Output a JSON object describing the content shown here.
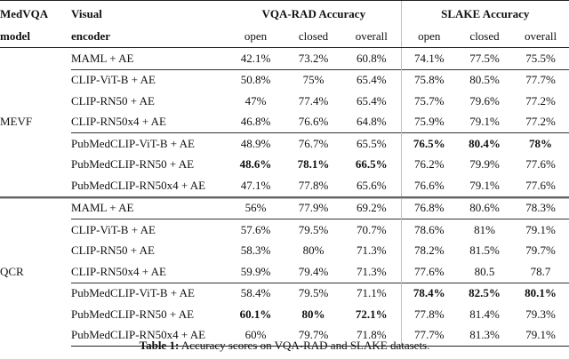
{
  "header": {
    "model_line1": "MedVQA",
    "model_line2": "model",
    "encoder_line1": "Visual",
    "encoder_line2": "encoder",
    "vqarad_title": "VQA-RAD Accuracy",
    "slake_title": "SLAKE Accuracy",
    "sub": [
      "open",
      "closed",
      "overall",
      "open",
      "closed",
      "overall"
    ]
  },
  "groups": [
    {
      "model": "MEVF",
      "rows": [
        {
          "encoder": "MAML + AE",
          "vals": [
            "42.1%",
            "73.2%",
            "60.8%",
            "74.1%",
            "77.5%",
            "75.5%"
          ],
          "bold": [
            false,
            false,
            false,
            false,
            false,
            false
          ]
        },
        {
          "encoder": "CLIP-ViT-B + AE",
          "vals": [
            "50.8%",
            "75%",
            "65.4%",
            "75.8%",
            "80.5%",
            "77.7%"
          ],
          "bold": [
            false,
            false,
            false,
            false,
            false,
            false
          ]
        },
        {
          "encoder": "CLIP-RN50 + AE",
          "vals": [
            "47%",
            "77.4%",
            "65.4%",
            "75.7%",
            "79.6%",
            "77.2%"
          ],
          "bold": [
            false,
            false,
            false,
            false,
            false,
            false
          ]
        },
        {
          "encoder": "CLIP-RN50x4 + AE",
          "vals": [
            "46.8%",
            "76.6%",
            "64.8%",
            "75.9%",
            "79.1%",
            "77.2%"
          ],
          "bold": [
            false,
            false,
            false,
            false,
            false,
            false
          ]
        },
        {
          "encoder": "PubMedCLIP-ViT-B + AE",
          "vals": [
            "48.9%",
            "76.7%",
            "65.5%",
            "76.5%",
            "80.4%",
            "78%"
          ],
          "bold": [
            false,
            false,
            false,
            true,
            true,
            true
          ]
        },
        {
          "encoder": "PubMedCLIP-RN50 + AE",
          "vals": [
            "48.6%",
            "78.1%",
            "66.5%",
            "76.2%",
            "79.9%",
            "77.6%"
          ],
          "bold": [
            true,
            true,
            true,
            false,
            false,
            false
          ]
        },
        {
          "encoder": "PubMedCLIP-RN50x4 + AE",
          "vals": [
            "47.1%",
            "77.8%",
            "65.6%",
            "76.6%",
            "79.1%",
            "77.6%"
          ],
          "bold": [
            false,
            false,
            false,
            false,
            false,
            false
          ]
        }
      ]
    },
    {
      "model": "QCR",
      "rows": [
        {
          "encoder": "MAML + AE",
          "vals": [
            "56%",
            "77.9%",
            "69.2%",
            "76.8%",
            "80.6%",
            "78.3%"
          ],
          "bold": [
            false,
            false,
            false,
            false,
            false,
            false
          ]
        },
        {
          "encoder": "CLIP-ViT-B + AE",
          "vals": [
            "57.6%",
            "79.5%",
            "70.7%",
            "78.6%",
            "81%",
            "79.1%"
          ],
          "bold": [
            false,
            false,
            false,
            false,
            false,
            false
          ]
        },
        {
          "encoder": "CLIP-RN50 + AE",
          "vals": [
            "58.3%",
            "80%",
            "71.3%",
            "78.2%",
            "81.5%",
            "79.7%"
          ],
          "bold": [
            false,
            false,
            false,
            false,
            false,
            false
          ]
        },
        {
          "encoder": "CLIP-RN50x4 + AE",
          "vals": [
            "59.9%",
            "79.4%",
            "71.3%",
            "77.6%",
            "80.5",
            "78.7"
          ],
          "bold": [
            false,
            false,
            false,
            false,
            false,
            false
          ]
        },
        {
          "encoder": "PubMedCLIP-ViT-B + AE",
          "vals": [
            "58.4%",
            "79.5%",
            "71.1%",
            "78.4%",
            "82.5%",
            "80.1%"
          ],
          "bold": [
            false,
            false,
            false,
            true,
            true,
            true
          ]
        },
        {
          "encoder": "PubMedCLIP-RN50 + AE",
          "vals": [
            "60.1%",
            "80%",
            "72.1%",
            "77.8%",
            "81.4%",
            "79.3%"
          ],
          "bold": [
            true,
            true,
            true,
            false,
            false,
            false
          ]
        },
        {
          "encoder": "PubMedCLIP-RN50x4 + AE",
          "vals": [
            "60%",
            "79.7%",
            "71.8%",
            "77.7%",
            "81.3%",
            "79.1%"
          ],
          "bold": [
            false,
            false,
            false,
            false,
            false,
            false
          ]
        }
      ]
    }
  ],
  "caption": {
    "label": "Table 1:",
    "text": " Accuracy scores on VQA-RAD and SLAKE datasets."
  }
}
